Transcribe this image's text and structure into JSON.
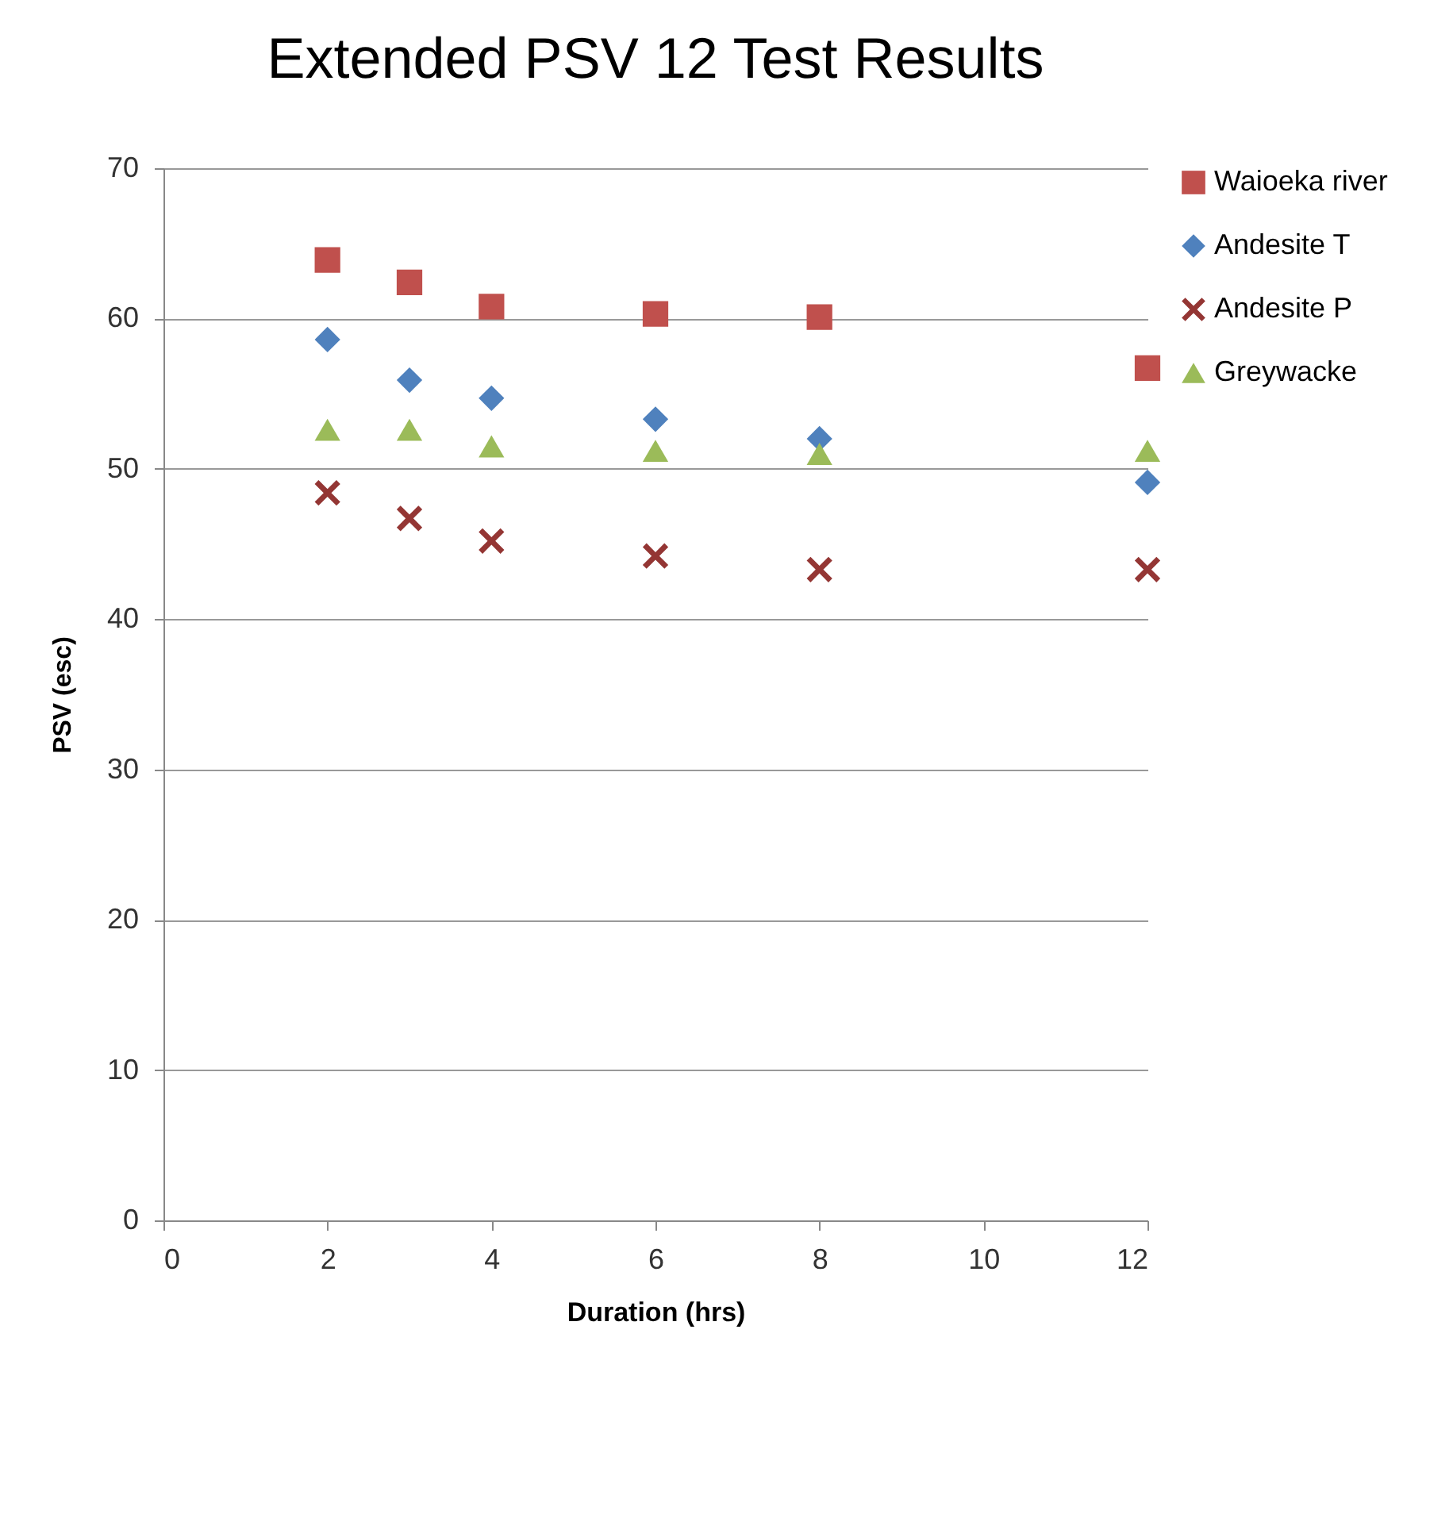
{
  "chart_data": {
    "type": "scatter",
    "title": "Extended PSV 12 Test Results",
    "xlabel": "Duration (hrs)",
    "ylabel": "PSV (esc)",
    "x": [
      2,
      3,
      4,
      6,
      8,
      12
    ],
    "series": [
      {
        "name": "Waioeka river",
        "color": "#c0504d",
        "marker": "square",
        "values": [
          63.9,
          62.4,
          60.8,
          60.3,
          60.1,
          56.7
        ]
      },
      {
        "name": "Andesite T",
        "color": "#4f81bd",
        "marker": "diamond",
        "values": [
          58.6,
          55.9,
          54.7,
          53.3,
          52.0,
          49.1
        ]
      },
      {
        "name": "Andesite P",
        "color": "#943634",
        "marker": "cross",
        "values": [
          48.4,
          46.7,
          45.2,
          44.2,
          43.3,
          43.3
        ]
      },
      {
        "name": "Greywacke",
        "color": "#9bbb59",
        "marker": "triangle",
        "values": [
          52.6,
          52.6,
          51.5,
          51.2,
          51.0,
          51.2
        ]
      }
    ],
    "xlim": [
      0,
      12
    ],
    "xticks": [
      0,
      2,
      4,
      6,
      8,
      10,
      12
    ],
    "ylim": [
      0,
      70
    ],
    "yticks": [
      0,
      10,
      20,
      30,
      40,
      50,
      60,
      70
    ],
    "grid": "y",
    "legend": "right"
  }
}
